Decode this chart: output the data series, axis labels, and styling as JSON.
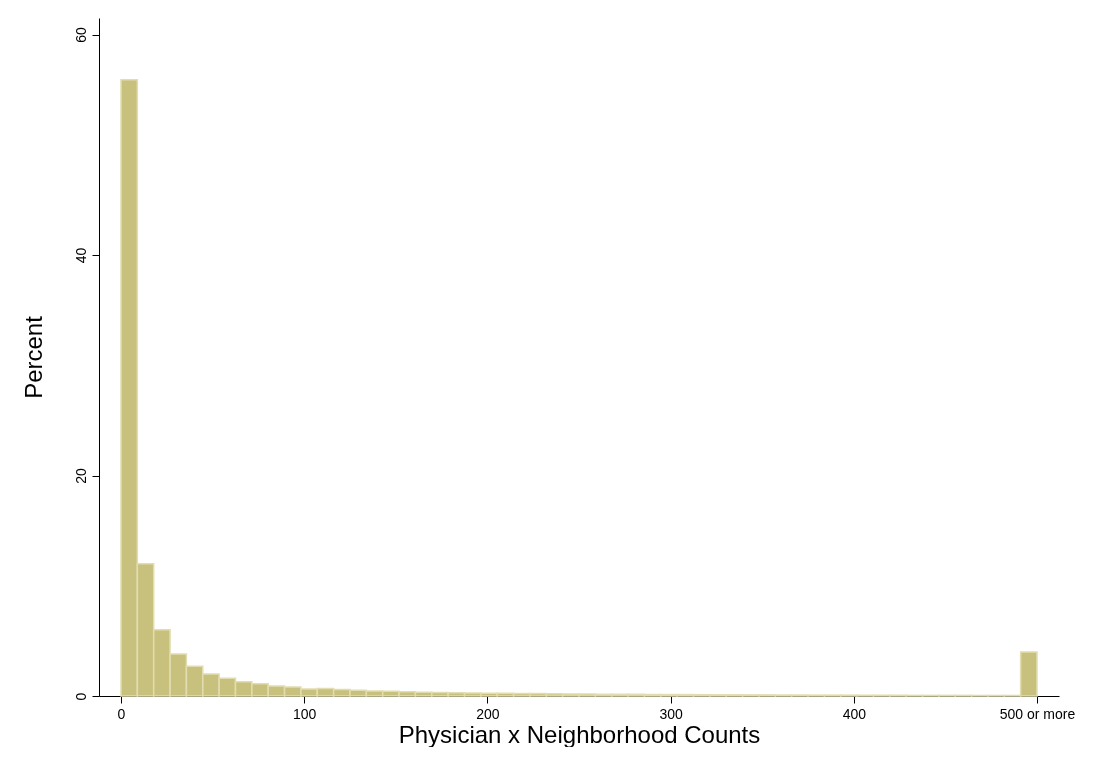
{
  "chart_data": {
    "type": "histogram",
    "xlabel": "Physician x Neighborhood Counts",
    "ylabel": "Percent",
    "bins": [
      0,
      8.93,
      17.86,
      26.79,
      35.71,
      44.64,
      53.57,
      62.5,
      71.43,
      80.36,
      89.29,
      98.21,
      107.14,
      116.07,
      125,
      133.93,
      142.86,
      151.79,
      160.71,
      169.64,
      178.57,
      187.5,
      196.43,
      205.36,
      214.29,
      223.21,
      232.14,
      241.07,
      250,
      258.93,
      267.86,
      276.79,
      285.71,
      294.64,
      303.57,
      312.5,
      321.43,
      330.36,
      339.29,
      348.21,
      357.14,
      366.07,
      375,
      383.93,
      392.86,
      401.79,
      410.71,
      419.64,
      428.57,
      437.5,
      446.43,
      455.36,
      464.29,
      473.21,
      482.14,
      491.07,
      500
    ],
    "values": [
      55.9,
      12.0,
      6.0,
      3.8,
      2.7,
      2.0,
      1.6,
      1.3,
      1.1,
      0.9,
      0.82,
      0.63,
      0.67,
      0.58,
      0.52,
      0.45,
      0.42,
      0.38,
      0.35,
      0.32,
      0.3,
      0.28,
      0.26,
      0.24,
      0.23,
      0.22,
      0.2,
      0.19,
      0.18,
      0.17,
      0.16,
      0.15,
      0.14,
      0.13,
      0.13,
      0.12,
      0.11,
      0.11,
      0.1,
      0.1,
      0.09,
      0.09,
      0.08,
      0.08,
      0.08,
      0.07,
      0.07,
      0.07,
      0.06,
      0.06,
      0.06,
      0.06,
      0.05,
      0.05,
      0.05,
      4.0
    ],
    "color": "#c8c17e",
    "xlim": [
      -12,
      512
    ],
    "ylim": [
      0,
      61.5
    ],
    "xticks": [
      0,
      100,
      200,
      300,
      400,
      {
        "value": 500,
        "label": "500 or more"
      }
    ],
    "yticks": [
      0,
      20,
      40,
      60
    ],
    "grid": false
  }
}
